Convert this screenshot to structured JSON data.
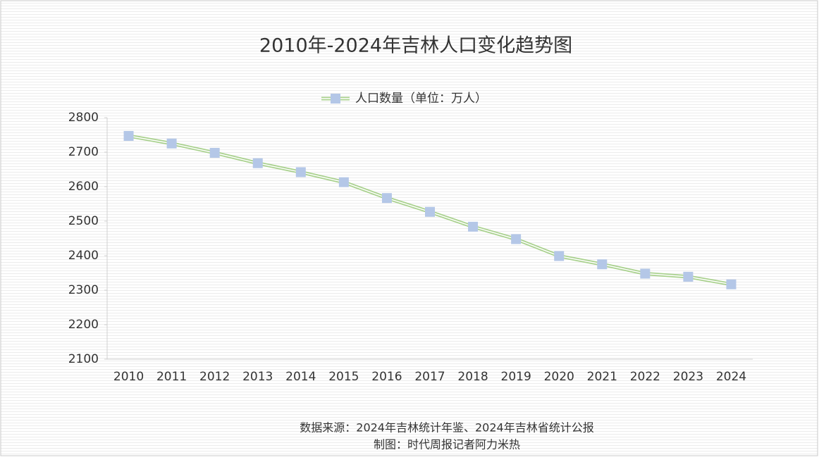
{
  "chart_data": {
    "type": "line",
    "title": "2010年-2024年吉林人口变化趋势图",
    "categories": [
      "2010",
      "2011",
      "2012",
      "2013",
      "2014",
      "2015",
      "2016",
      "2017",
      "2018",
      "2019",
      "2020",
      "2021",
      "2022",
      "2023",
      "2024"
    ],
    "series": [
      {
        "name": "人口数量（单位：万人）",
        "color": "#a9d18e",
        "marker_color": "#b4c7e7",
        "values": [
          2747,
          2725,
          2698,
          2668,
          2642,
          2613,
          2567,
          2527,
          2484,
          2448,
          2399,
          2375,
          2348,
          2339,
          2317
        ]
      }
    ],
    "ylim": [
      2100,
      2800
    ],
    "yticks": [
      2100,
      2200,
      2300,
      2400,
      2500,
      2600,
      2700,
      2800
    ],
    "grid": false,
    "legend": "top",
    "notes": [
      "数据来源：2024年吉林统计年鉴、2024年吉林省统计公报",
      "制图：时代周报记者阿力米热"
    ]
  }
}
